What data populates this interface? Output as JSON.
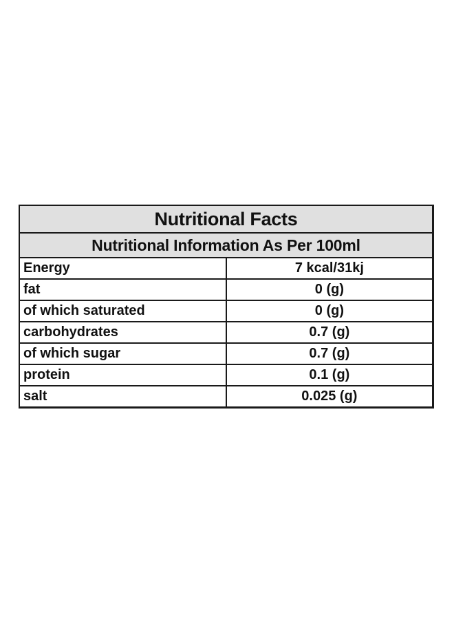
{
  "title": "Nutritional Facts",
  "subtitle": "Nutritional Information As Per 100ml",
  "rows": [
    {
      "label": "Energy",
      "value": "7 kcal/31kj"
    },
    {
      "label": "fat",
      "value": "0 (g)"
    },
    {
      "label": "of which saturated",
      "value": "0 (g)"
    },
    {
      "label": "carbohydrates",
      "value": "0.7 (g)"
    },
    {
      "label": "of which sugar",
      "value": "0.7 (g)"
    },
    {
      "label": "protein",
      "value": "0.1 (g)"
    },
    {
      "label": "salt",
      "value": "0.025 (g)"
    }
  ],
  "colors": {
    "header_background": "#e0e0e0",
    "border": "#1a1a1a",
    "text": "#111111"
  }
}
